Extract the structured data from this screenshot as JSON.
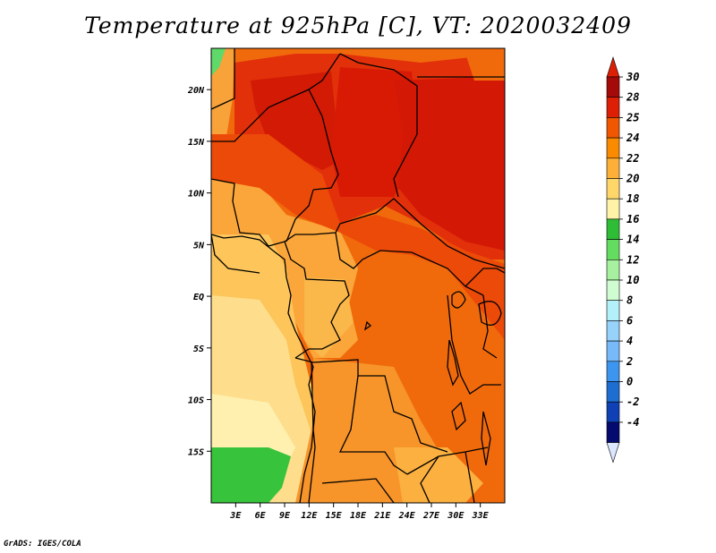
{
  "title": "Temperature at 925hPa [C], VT: 2020032409",
  "credit": "GrADS: IGES/COLA",
  "map": {
    "region": "Central Africa",
    "lon_range": [
      0,
      36
    ],
    "lat_range": [
      -20,
      24
    ],
    "x_ticks": [
      "3E",
      "6E",
      "9E",
      "12E",
      "15E",
      "18E",
      "21E",
      "24E",
      "27E",
      "30E",
      "33E"
    ],
    "y_ticks": [
      "20N",
      "15N",
      "10N",
      "5N",
      "EQ",
      "5S",
      "10S",
      "15S"
    ]
  },
  "colorbar": {
    "labels": [
      "30",
      "28",
      "25",
      "24",
      "22",
      "20",
      "18",
      "16",
      "14",
      "12",
      "10",
      "8",
      "6",
      "4",
      "2",
      "0",
      "-2",
      "-4"
    ],
    "colors": [
      "#a50a0a",
      "#dd1f05",
      "#f05700",
      "#fa8a00",
      "#fdb038",
      "#fed66a",
      "#fff3a8",
      "#2fbd37",
      "#64dc5f",
      "#a6f0a0",
      "#cffcd1",
      "#b4f0fa",
      "#96d2fa",
      "#78b9fa",
      "#3c96f0",
      "#1e6ed2",
      "#0f41b4",
      "#050a6e"
    ],
    "top_color": "#dd1f05",
    "bottom_color": "#dbe6ff"
  }
}
